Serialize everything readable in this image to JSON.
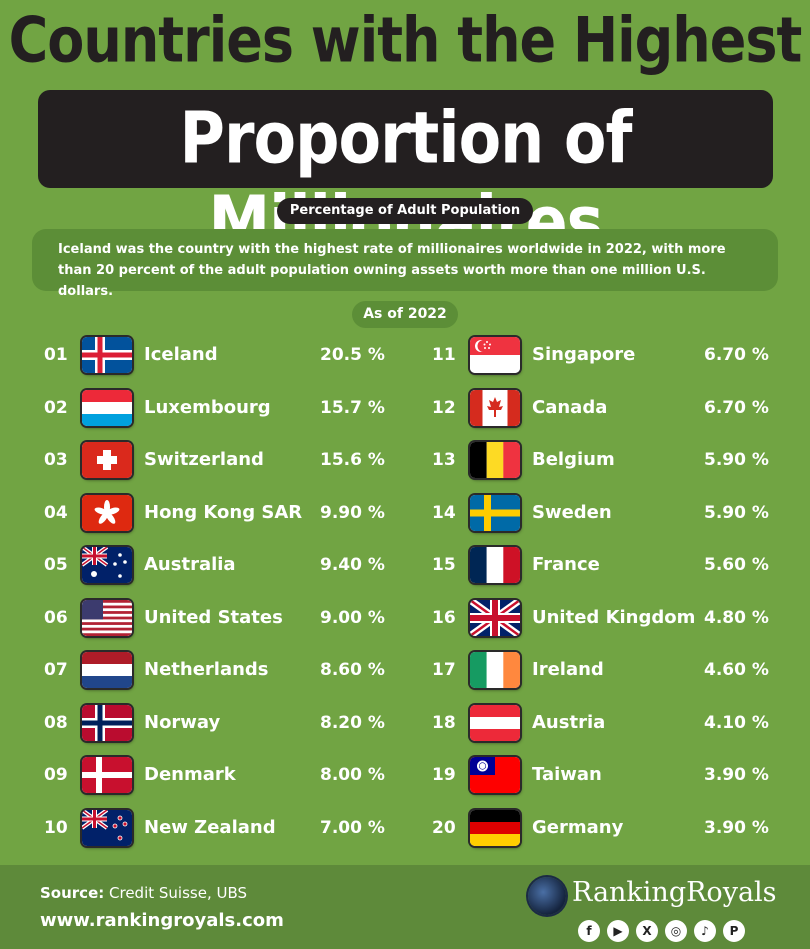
{
  "header": {
    "title_line1": "Countries with the Highest",
    "title_line2": "Proportion of Millionaires",
    "subtitle": "Percentage of Adult Population",
    "description": "Iceland was the country with the highest rate of millionaires worldwide in 2022, with more than 20 percent of the adult population owning assets worth more than one million U.S. dollars.",
    "as_of": "As of 2022"
  },
  "chart_data": {
    "type": "table",
    "columns": [
      "rank",
      "country",
      "percentage"
    ],
    "rows": [
      {
        "rank": "01",
        "country": "Iceland",
        "value_label": "20.5 %",
        "value": 20.5,
        "flag": "iceland-flag"
      },
      {
        "rank": "02",
        "country": "Luxembourg",
        "value_label": "15.7 %",
        "value": 15.7,
        "flag": "luxembourg-flag"
      },
      {
        "rank": "03",
        "country": "Switzerland",
        "value_label": "15.6 %",
        "value": 15.6,
        "flag": "switzerland-flag"
      },
      {
        "rank": "04",
        "country": "Hong Kong SAR",
        "value_label": "9.90 %",
        "value": 9.9,
        "flag": "hong-kong-flag"
      },
      {
        "rank": "05",
        "country": "Australia",
        "value_label": "9.40 %",
        "value": 9.4,
        "flag": "australia-flag"
      },
      {
        "rank": "06",
        "country": "United States",
        "value_label": "9.00 %",
        "value": 9.0,
        "flag": "united-states-flag"
      },
      {
        "rank": "07",
        "country": "Netherlands",
        "value_label": "8.60 %",
        "value": 8.6,
        "flag": "netherlands-flag"
      },
      {
        "rank": "08",
        "country": "Norway",
        "value_label": "8.20 %",
        "value": 8.2,
        "flag": "norway-flag"
      },
      {
        "rank": "09",
        "country": "Denmark",
        "value_label": "8.00 %",
        "value": 8.0,
        "flag": "denmark-flag"
      },
      {
        "rank": "10",
        "country": "New Zealand",
        "value_label": "7.00 %",
        "value": 7.0,
        "flag": "new-zealand-flag"
      },
      {
        "rank": "11",
        "country": "Singapore",
        "value_label": "6.70 %",
        "value": 6.7,
        "flag": "singapore-flag"
      },
      {
        "rank": "12",
        "country": "Canada",
        "value_label": "6.70 %",
        "value": 6.7,
        "flag": "canada-flag"
      },
      {
        "rank": "13",
        "country": "Belgium",
        "value_label": "5.90 %",
        "value": 5.9,
        "flag": "belgium-flag"
      },
      {
        "rank": "14",
        "country": "Sweden",
        "value_label": "5.90 %",
        "value": 5.9,
        "flag": "sweden-flag"
      },
      {
        "rank": "15",
        "country": "France",
        "value_label": "5.60 %",
        "value": 5.6,
        "flag": "france-flag"
      },
      {
        "rank": "16",
        "country": "United Kingdom",
        "value_label": "4.80 %",
        "value": 4.8,
        "flag": "united-kingdom-flag"
      },
      {
        "rank": "17",
        "country": "Ireland",
        "value_label": "4.60 %",
        "value": 4.6,
        "flag": "ireland-flag"
      },
      {
        "rank": "18",
        "country": "Austria",
        "value_label": "4.10 %",
        "value": 4.1,
        "flag": "austria-flag"
      },
      {
        "rank": "19",
        "country": "Taiwan",
        "value_label": "3.90 %",
        "value": 3.9,
        "flag": "taiwan-flag"
      },
      {
        "rank": "20",
        "country": "Germany",
        "value_label": "3.90 %",
        "value": 3.9,
        "flag": "germany-flag"
      }
    ]
  },
  "footer": {
    "source_label": "Source:",
    "source_text": " Credit Suisse, UBS",
    "website": "www.rankingroyals.com",
    "brand": "RankingRoyals",
    "socials": [
      {
        "icon": "facebook-icon",
        "glyph": "f"
      },
      {
        "icon": "youtube-icon",
        "glyph": "▶"
      },
      {
        "icon": "x-icon",
        "glyph": "X"
      },
      {
        "icon": "instagram-icon",
        "glyph": "◎"
      },
      {
        "icon": "tiktok-icon",
        "glyph": "♪"
      },
      {
        "icon": "pinterest-icon",
        "glyph": "P"
      }
    ]
  },
  "colors": {
    "background": "#71a443",
    "dark": "#231f20",
    "panel": "#5c8e37",
    "footer": "#5e8a3a"
  }
}
